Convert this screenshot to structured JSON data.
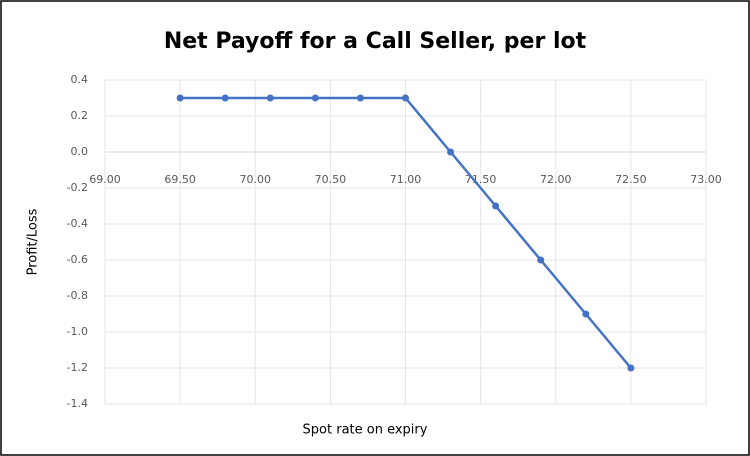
{
  "chart_data": {
    "type": "line",
    "title": "Net Payoff for a Call Seller, per lot",
    "x_label": "Spot rate on expiry",
    "y_label": "Profit/Loss",
    "x": [
      69.5,
      69.8,
      70.1,
      70.4,
      70.7,
      71.0,
      71.3,
      71.6,
      71.9,
      72.2,
      72.5
    ],
    "values": [
      0.3,
      0.3,
      0.3,
      0.3,
      0.3,
      0.3,
      0,
      -0.3,
      -0.6,
      -0.9,
      -1.2
    ],
    "color": "#4472c4",
    "xlim": [
      69,
      73
    ],
    "xticks": [
      {
        "value": 69,
        "label": "69.00"
      },
      {
        "value": 69.5,
        "label": "69.50"
      },
      {
        "value": 70,
        "label": "70.00"
      },
      {
        "value": 70.5,
        "label": "70.50"
      },
      {
        "value": 71,
        "label": "71.00"
      },
      {
        "value": 71.5,
        "label": "71.50"
      },
      {
        "value": 72,
        "label": "72.00"
      },
      {
        "value": 72.5,
        "label": "72.50"
      },
      {
        "value": 73,
        "label": "73.00"
      }
    ],
    "ylim": [
      -1.4,
      0.4
    ],
    "yticks": [
      0.4,
      0.2,
      {
        "value": 0,
        "label": "0.0"
      },
      -0.2,
      -0.4,
      -0.6,
      -0.8,
      {
        "value": -1,
        "label": "-1.0"
      },
      -1.2,
      -1.4
    ],
    "grid": true
  }
}
